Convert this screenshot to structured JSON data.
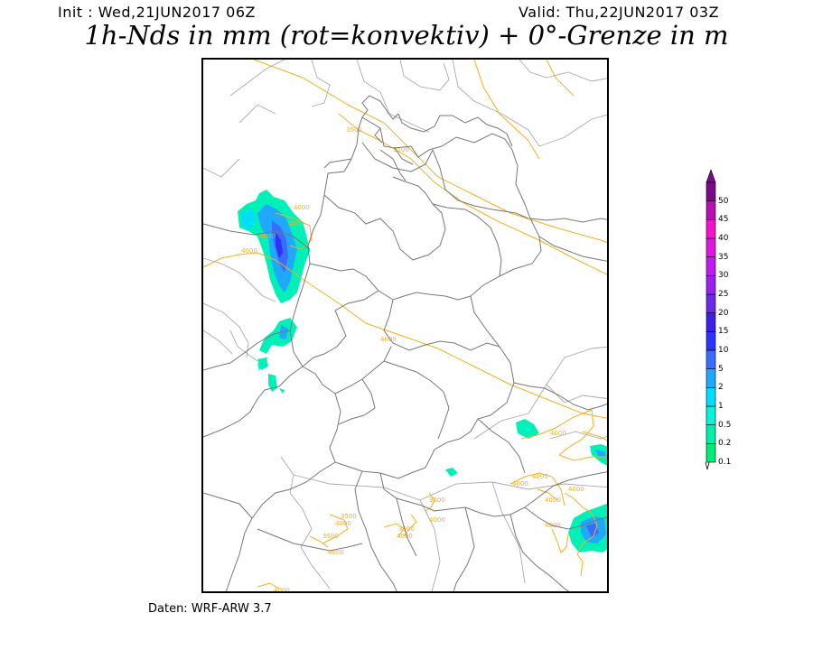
{
  "header": {
    "init": "Init : Wed,21JUN2017 06Z",
    "valid": "Valid: Thu,22JUN2017 03Z",
    "title": "1h-Nds in mm (rot=konvektiv) + 0°-Grenze in m"
  },
  "footer": "Daten: WRF-ARW 3.7",
  "legend": {
    "unit": "mm",
    "levels": [
      "0.1",
      "0.2",
      "0.5",
      "1",
      "2",
      "5",
      "10",
      "15",
      "20",
      "25",
      "30",
      "35",
      "40",
      "45",
      "50"
    ],
    "colors": [
      "#00ee77",
      "#00f2a8",
      "#00f5dd",
      "#00ddff",
      "#20a8ff",
      "#3a6cff",
      "#2c33ff",
      "#3d1fe6",
      "#6a2ae8",
      "#9a22f0",
      "#c01af0",
      "#e216e0",
      "#f511cc",
      "#b80fb0",
      "#7a0a88"
    ]
  },
  "map": {
    "isotherm_color": "#f2b01e",
    "border_color": "#777777",
    "coast_color": "#aaaaaa",
    "isotherm_labels": [
      "3500",
      "3500",
      "4000",
      "4000",
      "4000",
      "4000",
      "4000",
      "4000",
      "4000",
      "4000",
      "4000",
      "4000",
      "4000",
      "3500",
      "4000",
      "3500",
      "4000",
      "3500",
      "4000",
      "3500",
      "4000",
      "4000"
    ]
  }
}
